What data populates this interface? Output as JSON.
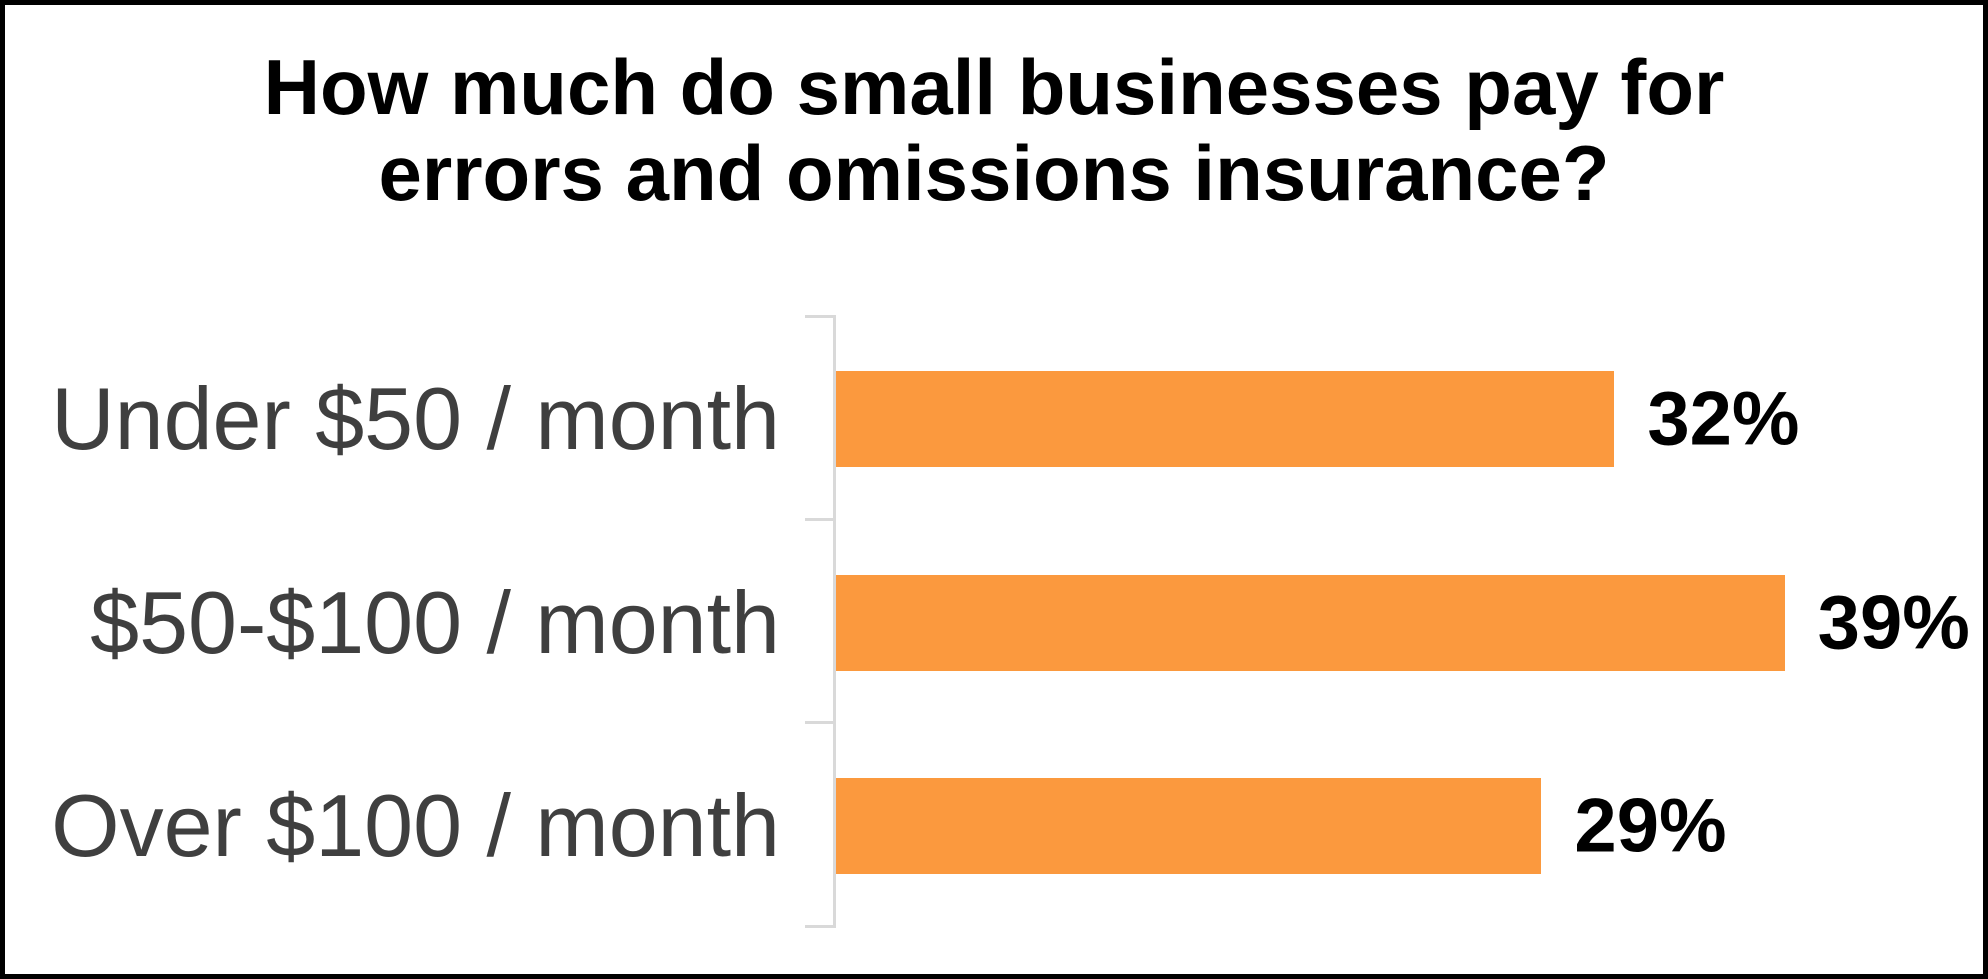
{
  "chart_data": {
    "type": "bar",
    "orientation": "horizontal",
    "title": "How much do small businesses pay for errors and omissions insurance?",
    "title_lines": [
      "How much do small businesses pay for",
      "errors and omissions insurance?"
    ],
    "categories": [
      "Under $50 / month",
      "$50-$100 / month",
      "Over $100 / month"
    ],
    "values": [
      32,
      39,
      29
    ],
    "data_labels": [
      "32%",
      "39%",
      "29%"
    ],
    "xlim": [
      0,
      40
    ],
    "x_axis_labels_visible": false,
    "gridlines": false,
    "legend": false,
    "colors": {
      "bar": "#FB993E",
      "axis": "#D9D9D9",
      "category_label": "#3F3F3F",
      "value_label": "#000000",
      "title": "#000000",
      "background": "#FFFFFF",
      "frame_border": "#000000"
    }
  }
}
